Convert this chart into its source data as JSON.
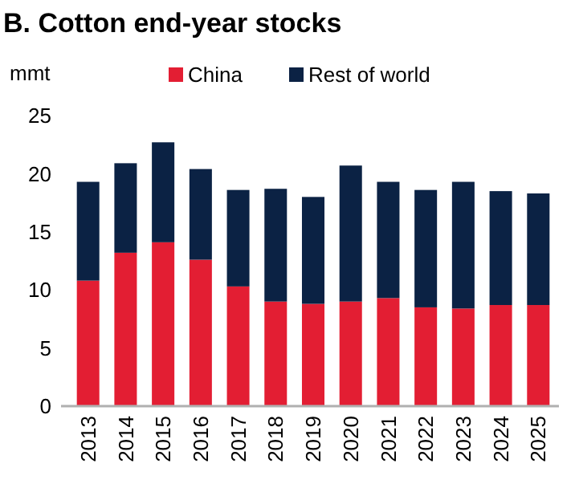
{
  "chart_data": {
    "type": "bar",
    "title": "B. Cotton end-year stocks",
    "ylabel": "mmt",
    "stacked": true,
    "legend": "top",
    "grid": false,
    "categories": [
      "2013",
      "2014",
      "2015",
      "2016",
      "2017",
      "2018",
      "2019",
      "2020",
      "2021",
      "2022",
      "2023",
      "2024",
      "2025"
    ],
    "series": [
      {
        "name": "China",
        "color": "#e31e33",
        "values": [
          10.8,
          13.2,
          14.1,
          12.6,
          10.3,
          9.0,
          8.8,
          9.0,
          9.3,
          8.5,
          8.4,
          8.7,
          8.7
        ]
      },
      {
        "name": "Rest of world",
        "color": "#0b2244",
        "values": [
          8.5,
          7.7,
          8.6,
          7.8,
          8.3,
          9.7,
          9.2,
          11.7,
          10.0,
          10.1,
          10.9,
          9.8,
          9.6
        ]
      }
    ],
    "ylim": [
      0,
      25
    ],
    "yticks": [
      0,
      5,
      10,
      15,
      20,
      25
    ]
  }
}
